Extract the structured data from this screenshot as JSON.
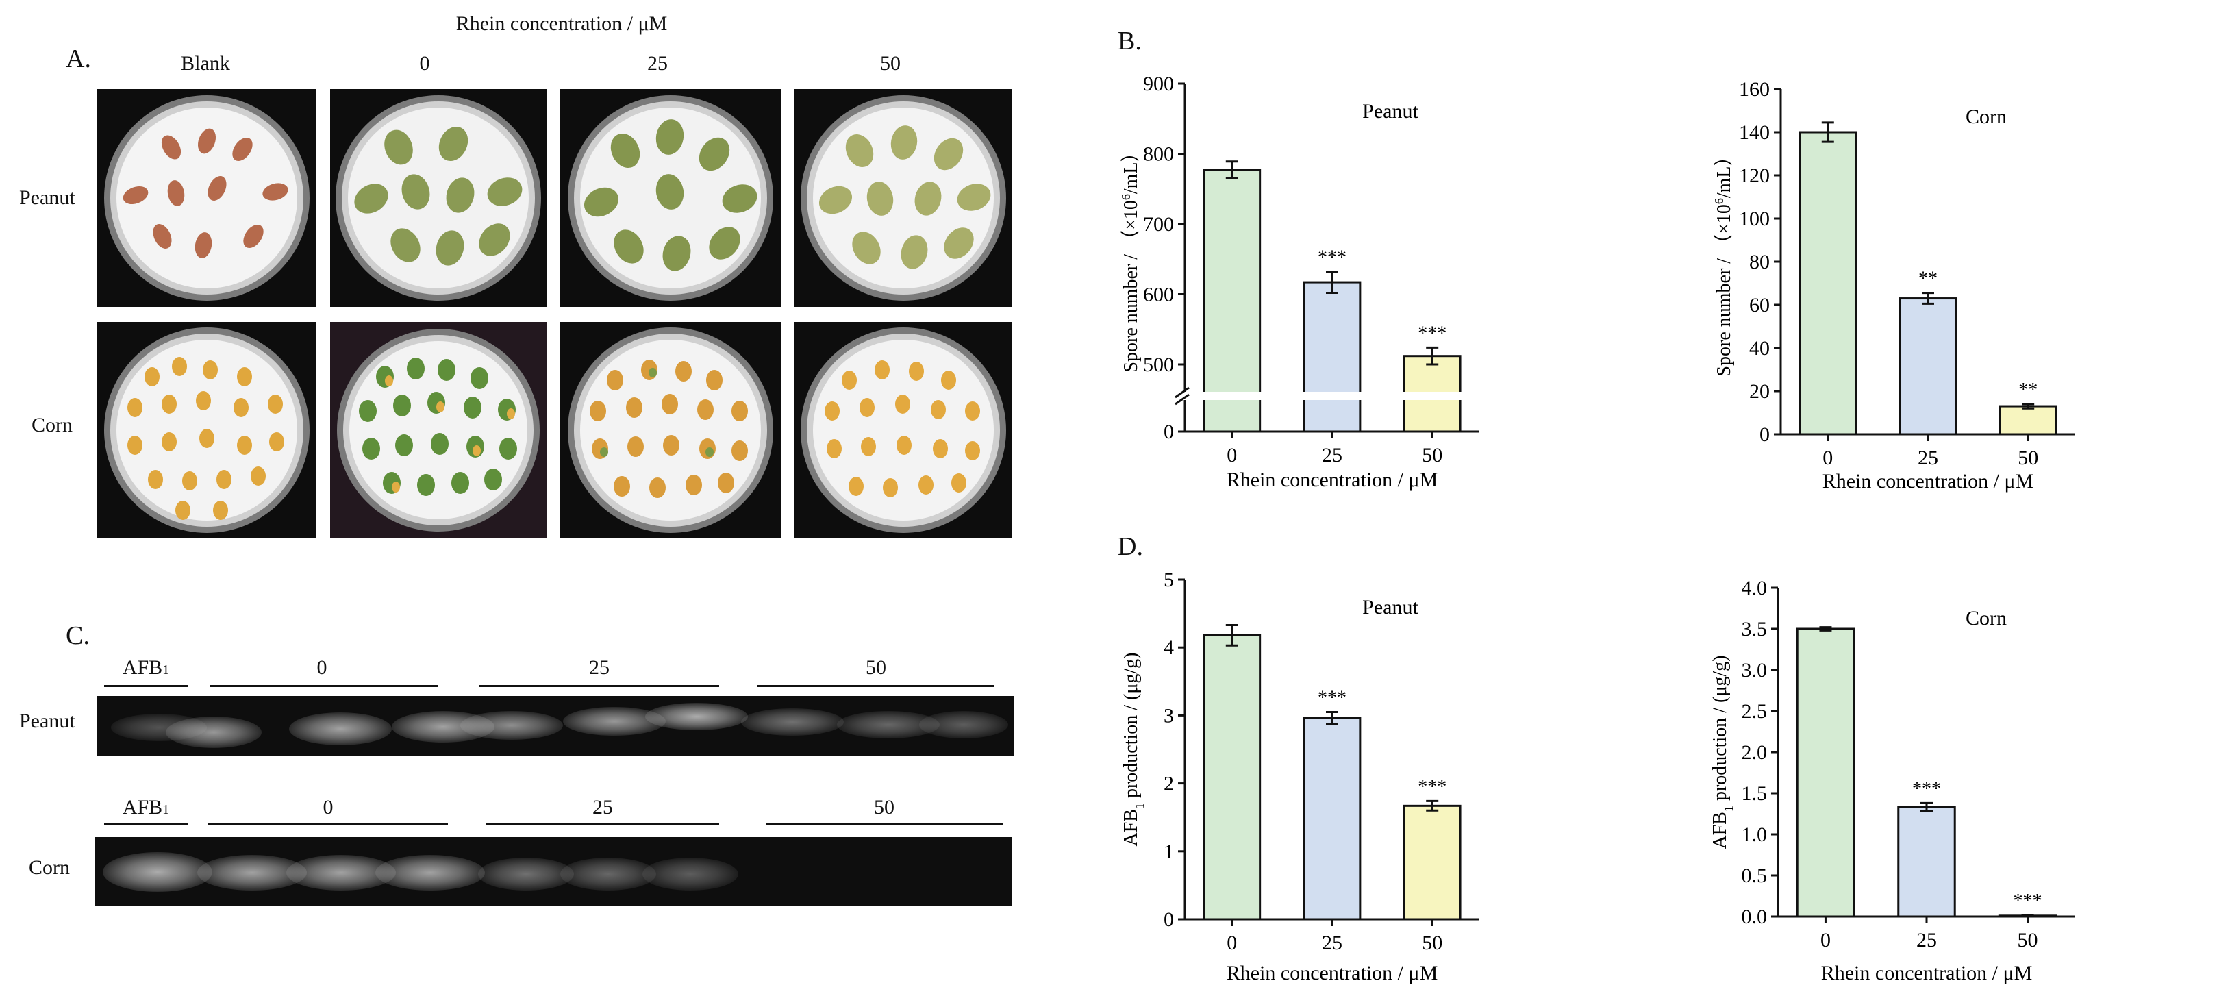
{
  "figure": {
    "panels": {
      "A": {
        "letter": "A.",
        "header": "Rhein concentration / μM",
        "columns": [
          "Blank",
          "0",
          "25",
          "50"
        ],
        "rows": [
          "Peanut",
          "Corn"
        ]
      },
      "B": {
        "letter": "B."
      },
      "C": {
        "letter": "C.",
        "rows": [
          {
            "label": "Peanut",
            "std": "AFB",
            "std_sub": "1",
            "groups": [
              "0",
              "25",
              "50"
            ]
          },
          {
            "label": "Corn",
            "std": "AFB",
            "std_sub": "1",
            "groups": [
              "0",
              "25",
              "50"
            ]
          }
        ]
      },
      "D": {
        "letter": "D."
      }
    },
    "bar_colors": [
      "#d5ebd3",
      "#d2def0",
      "#f7f5bf"
    ]
  },
  "chart_data": [
    {
      "id": "B-peanut",
      "type": "bar",
      "title": "Peanut",
      "categories": [
        "0",
        "25",
        "50"
      ],
      "values": [
        777,
        617,
        512
      ],
      "errors": [
        12,
        15,
        12
      ],
      "significance": [
        "",
        "***",
        "***"
      ],
      "xlabel": "Rhein concentration / μM",
      "ylabel_parts": [
        "Spore number / （×10",
        "6",
        "/mL）"
      ],
      "ylim": [
        0,
        900
      ],
      "axis_break": [
        0,
        450
      ],
      "yticks": [
        "0",
        "500",
        "600",
        "700",
        "800",
        "900"
      ]
    },
    {
      "id": "B-corn",
      "type": "bar",
      "title": "Corn",
      "categories": [
        "0",
        "25",
        "50"
      ],
      "values": [
        140,
        63,
        13
      ],
      "errors": [
        4.5,
        2.5,
        1
      ],
      "significance": [
        "",
        "**",
        "**"
      ],
      "xlabel": "Rhein concentration / μM",
      "ylabel_parts": [
        "Spore number / （×10",
        "6",
        "/mL）"
      ],
      "ylim": [
        0,
        160
      ],
      "yticks": [
        "0",
        "20",
        "40",
        "60",
        "80",
        "100",
        "120",
        "140",
        "160"
      ]
    },
    {
      "id": "D-peanut",
      "type": "bar",
      "title": "Peanut",
      "categories": [
        "0",
        "25",
        "50"
      ],
      "values": [
        4.18,
        2.96,
        1.67
      ],
      "errors": [
        0.15,
        0.09,
        0.07
      ],
      "significance": [
        "",
        "***",
        "***"
      ],
      "xlabel": "Rhein concentration / μM",
      "ylabel_parts": [
        "AFB",
        "1",
        " production / (μg/g)"
      ],
      "ylim": [
        0,
        5
      ],
      "yticks": [
        "0",
        "1",
        "2",
        "3",
        "4",
        "5"
      ]
    },
    {
      "id": "D-corn",
      "type": "bar",
      "title": "Corn",
      "categories": [
        "0",
        "25",
        "50"
      ],
      "values": [
        3.5,
        1.33,
        0.01
      ],
      "errors": [
        0.02,
        0.05,
        0.005
      ],
      "significance": [
        "",
        "***",
        "***"
      ],
      "xlabel": "Rhein concentration / μM",
      "ylabel_parts": [
        "AFB",
        "1",
        " production / (μg/g)"
      ],
      "ylim": [
        0,
        4
      ],
      "yticks": [
        "0.0",
        "0.5",
        "1.0",
        "1.5",
        "2.0",
        "2.5",
        "3.0",
        "3.5",
        "4.0"
      ]
    }
  ]
}
